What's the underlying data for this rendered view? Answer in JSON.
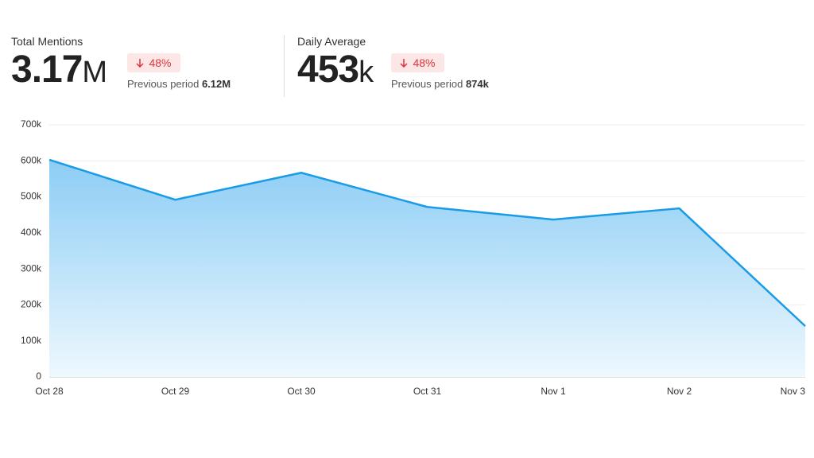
{
  "stats": [
    {
      "label": "Total Mentions",
      "value": "3.17",
      "unit": "M",
      "change": "48%",
      "previous_label": "Previous period",
      "previous_value": "6.12M"
    },
    {
      "label": "Daily Average",
      "value": "453",
      "unit": "k",
      "change": "48%",
      "previous_label": "Previous period",
      "previous_value": "874k"
    }
  ],
  "chart_data": {
    "type": "area",
    "categories": [
      "Oct 28",
      "Oct 29",
      "Oct 30",
      "Oct 31",
      "Nov 1",
      "Nov 2",
      "Nov 3"
    ],
    "values": [
      603000,
      492000,
      567000,
      472000,
      437000,
      468000,
      141000
    ],
    "color": "#1a9be8",
    "ylim": [
      0,
      700000
    ],
    "yticks": [
      0,
      {
        "value": 100000,
        "label": "100k"
      },
      {
        "value": 200000,
        "label": "200k"
      },
      {
        "value": 300000,
        "label": "300k"
      },
      {
        "value": 400000,
        "label": "400k"
      },
      {
        "value": 500000,
        "label": "500k"
      },
      {
        "value": 600000,
        "label": "600k"
      },
      {
        "value": 700000,
        "label": "700k"
      }
    ],
    "grid": true
  }
}
